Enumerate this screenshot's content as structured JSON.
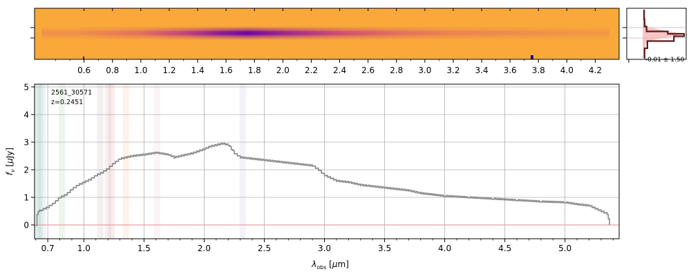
{
  "chart_data": [
    {
      "panel": "spectrum-2d",
      "type": "heatmap",
      "colormap": "plasma_r",
      "background_color": "#f9a93a",
      "trace_color": "#7a0ba3",
      "top_axis_ticks": [
        "0.6",
        "0.8",
        "1.0",
        "1.2",
        "1.4",
        "1.6",
        "1.8",
        "2.0",
        "2.2",
        "2.4",
        "2.6",
        "2.8",
        "3.0",
        "3.2",
        "3.4",
        "3.6",
        "3.8",
        "4.0",
        "4.2"
      ],
      "trace_intensity": [
        {
          "wavelength": 0.55,
          "value": 0.15
        },
        {
          "wavelength": 1.0,
          "value": 0.35
        },
        {
          "wavelength": 1.3,
          "value": 0.6
        },
        {
          "wavelength": 1.55,
          "value": 0.85
        },
        {
          "wavelength": 1.75,
          "value": 1.0
        },
        {
          "wavelength": 2.0,
          "value": 0.8
        },
        {
          "wavelength": 2.4,
          "value": 0.55
        },
        {
          "wavelength": 2.8,
          "value": 0.35
        },
        {
          "wavelength": 3.2,
          "value": 0.22
        },
        {
          "wavelength": 3.8,
          "value": 0.15
        },
        {
          "wavelength": 4.2,
          "value": 0.1
        }
      ]
    },
    {
      "panel": "spatial-profile",
      "type": "line",
      "annotation": "-0.01 ± 1.50",
      "profile": [
        {
          "offset": -1.0,
          "flux": 0.02
        },
        {
          "offset": -0.6,
          "flux": 0.03
        },
        {
          "offset": -0.3,
          "flux": 0.08
        },
        {
          "offset": -0.1,
          "flux": 0.6
        },
        {
          "offset": 0.0,
          "flux": 1.0
        },
        {
          "offset": 0.1,
          "flux": 0.75
        },
        {
          "offset": 0.3,
          "flux": 0.1
        },
        {
          "offset": 0.6,
          "flux": 0.03
        },
        {
          "offset": 1.0,
          "flux": 0.02
        }
      ]
    },
    {
      "panel": "spectrum-1d",
      "type": "line",
      "title": "",
      "annotation": {
        "id": "2561_30571",
        "redshift": "z=0.2451"
      },
      "xlabel": "λobs [μm]",
      "ylabel": "fν [μJy]",
      "xlim": [
        0.59,
        5.45
      ],
      "ylim": [
        -0.5,
        5.1
      ],
      "xticks": [
        {
          "value": 0.7,
          "label": "0.7"
        },
        {
          "value": 1.0,
          "label": "1.0"
        },
        {
          "value": 1.5,
          "label": "1.5"
        },
        {
          "value": 2.0,
          "label": "2.0"
        },
        {
          "value": 2.5,
          "label": "2.5"
        },
        {
          "value": 3.0,
          "label": "3.0"
        },
        {
          "value": 3.5,
          "label": "3.5"
        },
        {
          "value": 4.0,
          "label": "4.0"
        },
        {
          "value": 4.5,
          "label": "4.5"
        },
        {
          "value": 5.0,
          "label": "5.0"
        }
      ],
      "yticks": [
        0,
        1,
        2,
        3,
        4,
        5
      ],
      "grid": true,
      "line_bands": [
        {
          "center": 0.612,
          "color": "#1f77b4"
        },
        {
          "center": 0.63,
          "color": "#2ca02c"
        },
        {
          "center": 0.655,
          "color": "#1f77b4"
        },
        {
          "center": 0.817,
          "color": "#2ca02c"
        },
        {
          "center": 1.135,
          "color": "#8c564b"
        },
        {
          "center": 1.2,
          "color": "#8c564b"
        },
        {
          "center": 1.23,
          "color": "#d62728"
        },
        {
          "center": 1.35,
          "color": "#ff7f0e"
        },
        {
          "center": 1.61,
          "color": "#e377c2"
        },
        {
          "center": 2.32,
          "color": "#9467bd"
        }
      ],
      "series": [
        {
          "name": "flux",
          "color": "#888888",
          "points": [
            {
              "x": 0.6,
              "y": 0.0
            },
            {
              "x": 0.61,
              "y": 0.4
            },
            {
              "x": 0.62,
              "y": 0.5
            },
            {
              "x": 0.65,
              "y": 0.55
            },
            {
              "x": 0.7,
              "y": 0.65
            },
            {
              "x": 0.75,
              "y": 0.8
            },
            {
              "x": 0.8,
              "y": 1.0
            },
            {
              "x": 0.85,
              "y": 1.1
            },
            {
              "x": 0.9,
              "y": 1.3
            },
            {
              "x": 0.95,
              "y": 1.45
            },
            {
              "x": 1.0,
              "y": 1.55
            },
            {
              "x": 1.05,
              "y": 1.65
            },
            {
              "x": 1.1,
              "y": 1.8
            },
            {
              "x": 1.15,
              "y": 1.9
            },
            {
              "x": 1.2,
              "y": 2.05
            },
            {
              "x": 1.25,
              "y": 2.25
            },
            {
              "x": 1.3,
              "y": 2.4
            },
            {
              "x": 1.35,
              "y": 2.45
            },
            {
              "x": 1.4,
              "y": 2.5
            },
            {
              "x": 1.5,
              "y": 2.55
            },
            {
              "x": 1.6,
              "y": 2.62
            },
            {
              "x": 1.7,
              "y": 2.55
            },
            {
              "x": 1.75,
              "y": 2.45
            },
            {
              "x": 1.8,
              "y": 2.5
            },
            {
              "x": 1.9,
              "y": 2.6
            },
            {
              "x": 2.0,
              "y": 2.75
            },
            {
              "x": 2.05,
              "y": 2.85
            },
            {
              "x": 2.1,
              "y": 2.9
            },
            {
              "x": 2.15,
              "y": 2.95
            },
            {
              "x": 2.2,
              "y": 2.9
            },
            {
              "x": 2.25,
              "y": 2.6
            },
            {
              "x": 2.3,
              "y": 2.45
            },
            {
              "x": 2.4,
              "y": 2.4
            },
            {
              "x": 2.5,
              "y": 2.35
            },
            {
              "x": 2.6,
              "y": 2.3
            },
            {
              "x": 2.7,
              "y": 2.25
            },
            {
              "x": 2.8,
              "y": 2.2
            },
            {
              "x": 2.9,
              "y": 2.15
            },
            {
              "x": 2.95,
              "y": 2.0
            },
            {
              "x": 3.0,
              "y": 1.8
            },
            {
              "x": 3.05,
              "y": 1.7
            },
            {
              "x": 3.1,
              "y": 1.6
            },
            {
              "x": 3.2,
              "y": 1.55
            },
            {
              "x": 3.3,
              "y": 1.45
            },
            {
              "x": 3.4,
              "y": 1.4
            },
            {
              "x": 3.5,
              "y": 1.35
            },
            {
              "x": 3.6,
              "y": 1.3
            },
            {
              "x": 3.7,
              "y": 1.25
            },
            {
              "x": 3.8,
              "y": 1.15
            },
            {
              "x": 4.0,
              "y": 1.05
            },
            {
              "x": 4.2,
              "y": 1.0
            },
            {
              "x": 4.4,
              "y": 0.95
            },
            {
              "x": 4.6,
              "y": 0.9
            },
            {
              "x": 4.8,
              "y": 0.85
            },
            {
              "x": 5.0,
              "y": 0.82
            },
            {
              "x": 5.1,
              "y": 0.75
            },
            {
              "x": 5.2,
              "y": 0.7
            },
            {
              "x": 5.25,
              "y": 0.6
            },
            {
              "x": 5.3,
              "y": 0.5
            },
            {
              "x": 5.35,
              "y": 0.4
            },
            {
              "x": 5.37,
              "y": 0.0
            }
          ]
        },
        {
          "name": "model",
          "color": "#e8a0a0",
          "points": [
            {
              "x": 0.59,
              "y": 0.0
            },
            {
              "x": 5.45,
              "y": 0.0
            }
          ]
        }
      ]
    }
  ]
}
